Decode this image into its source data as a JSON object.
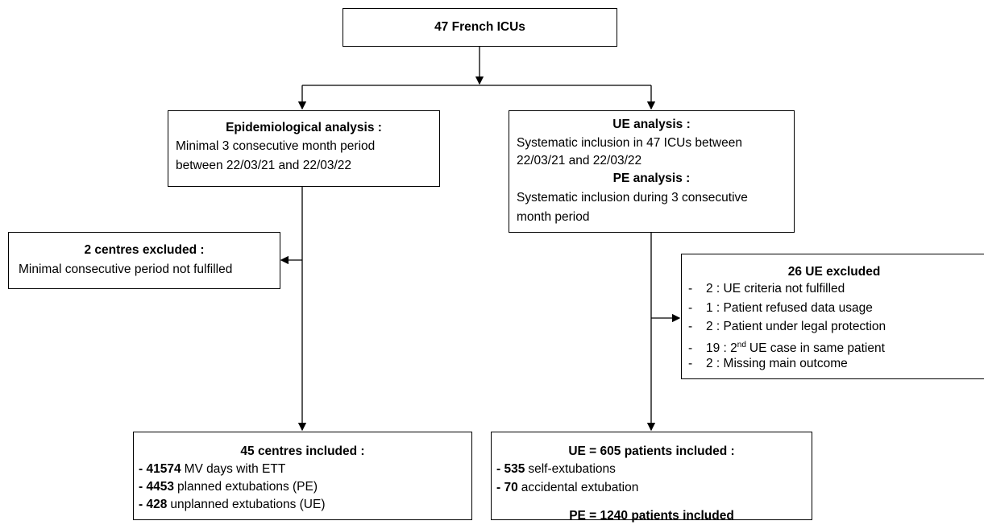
{
  "top": {
    "title": "47 French ICUs"
  },
  "epidemiological": {
    "title": "Epidemiological analysis :",
    "lines": [
      "Minimal 3 consecutive month period",
      "between 22/03/21 and 22/03/22"
    ]
  },
  "ue_pe": {
    "ue_title": "UE analysis :",
    "ue_lines": [
      "Systematic inclusion in 47 ICUs between",
      "22/03/21 and 22/03/22"
    ],
    "pe_title": "PE analysis :",
    "pe_lines": [
      "Systematic inclusion during 3 consecutive",
      "month period"
    ]
  },
  "centres_excluded": {
    "title": "2 centres excluded :",
    "lines": [
      "Minimal consecutive period not fulfilled"
    ]
  },
  "ue_excluded": {
    "title": "26 UE excluded",
    "items": [
      {
        "dash": "-",
        "text": "2 : UE criteria not fulfilled"
      },
      {
        "dash": "-",
        "text": "1 : Patient refused data usage"
      },
      {
        "dash": "-",
        "text": "2 : Patient under legal protection"
      },
      {
        "dash": "-",
        "text": "19 : 2",
        "sup": "nd",
        "rest": "UE case in same patient"
      },
      {
        "dash": "-",
        "text": "2 : Missing main outcome"
      }
    ]
  },
  "centres_included": {
    "title": "45 centres included :",
    "items": [
      {
        "bold": "- 41574",
        "text": "MV days with ETT"
      },
      {
        "bold": "- 4453",
        "text": "planned extubations (PE)"
      },
      {
        "bold": "- 428",
        "text": "unplanned extubations (UE)"
      }
    ]
  },
  "patients_included": {
    "title": "UE = 605 patients included :",
    "items": [
      {
        "bold": "- 535",
        "text": "self-extubations"
      },
      {
        "bold": "- 70",
        "text": "accidental extubation"
      }
    ],
    "pe_title": "PE = 1240 patients included"
  }
}
